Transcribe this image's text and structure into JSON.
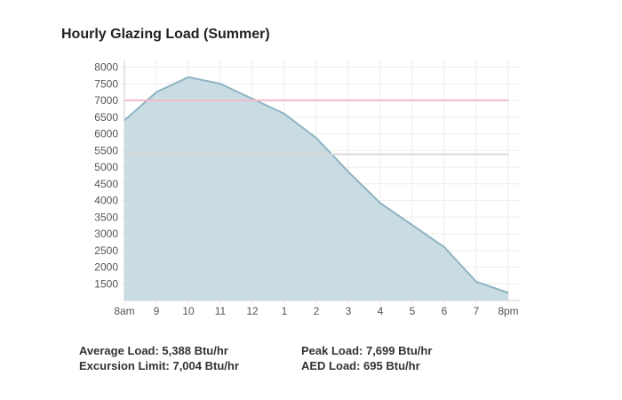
{
  "chart_data": {
    "type": "area",
    "title": "Hourly Glazing Load (Summer)",
    "xlabel": "",
    "ylabel": "",
    "categories": [
      "8am",
      "9",
      "10",
      "11",
      "12",
      "1",
      "2",
      "3",
      "4",
      "5",
      "6",
      "7",
      "8pm"
    ],
    "series": [
      {
        "values": [
          6400,
          7250,
          7699,
          7500,
          7050,
          6600,
          5870,
          4860,
          3920,
          3260,
          2600,
          1560,
          1230
        ]
      }
    ],
    "reference_lines": [
      {
        "value": 7004,
        "color": "#f4b8cc"
      },
      {
        "value": 5388,
        "color": "#d9d9d9"
      }
    ],
    "ylim": [
      1000,
      8200
    ],
    "yticks": [
      1500,
      2000,
      2500,
      3000,
      3500,
      4000,
      4500,
      5000,
      5500,
      6000,
      6500,
      7000,
      7500,
      8000
    ],
    "grid": true,
    "legend": "none",
    "colors": {
      "area_fill": "#c9dce3",
      "area_line": "#8fb4c4",
      "grid": "#eeeeee",
      "axis": "#cccccc"
    }
  },
  "stats": {
    "average_load": "Average Load: 5,388 Btu/hr",
    "excursion_limit": "Excursion Limit: 7,004 Btu/hr",
    "peak_load": "Peak Load: 7,699 Btu/hr",
    "aed_load": "AED Load: 695 Btu/hr"
  }
}
